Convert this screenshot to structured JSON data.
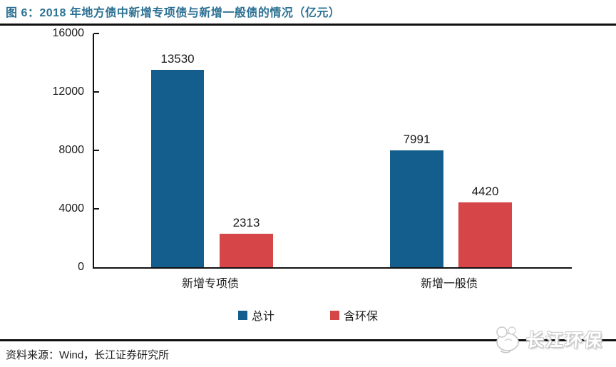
{
  "header": {
    "title": "图 6：2018 年地方债中新增专项债与新增一般债的情况（亿元）"
  },
  "colors": {
    "title_teal": "#2c7193",
    "series_blue": "#135e8c",
    "series_red": "#d64548",
    "rule_black": "#0f0f0f",
    "axis_text": "#1a1a1a"
  },
  "chart_data": {
    "type": "bar",
    "categories": [
      "新增专项债",
      "新增一般债"
    ],
    "series": [
      {
        "name": "总计",
        "color": "#135e8c",
        "values": [
          13530,
          7991
        ]
      },
      {
        "name": "含环保",
        "color": "#d64548",
        "values": [
          2313,
          4420
        ]
      }
    ],
    "title": "2018 年地方债中新增专项债与新增一般债的情况（亿元）",
    "xlabel": "",
    "ylabel": "",
    "ylim": [
      0,
      16000
    ],
    "yticks": [
      0,
      4000,
      8000,
      12000,
      16000
    ],
    "grid": false,
    "legend_position": "bottom",
    "data_labels": true
  },
  "footer": {
    "source": "资料来源：Wind，长江证券研究所",
    "watermark": "长江环保"
  }
}
